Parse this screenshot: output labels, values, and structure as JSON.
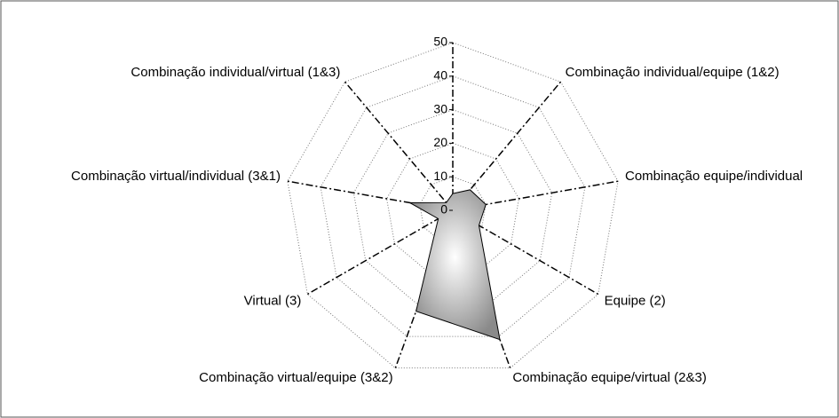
{
  "chart_data": {
    "type": "radar",
    "categories": [
      null,
      "Combinação individual/equipe (1&2)",
      "Combinação equipe/individual",
      "Equipe (2)",
      "Combinação equipe/virtual (2&3)",
      "Combinação virtual/equipe (3&2)",
      "Virtual (3)",
      "Combinação virtual/individual (3&1)",
      "Combinação individual/virtual (1&3)"
    ],
    "values": [
      5,
      8,
      10,
      9,
      41,
      32,
      5,
      13,
      3
    ],
    "color": "#a0a0a0",
    "ylim": [
      0,
      50
    ],
    "yticks": [
      0,
      10,
      20,
      30,
      40,
      50
    ],
    "grid": true
  }
}
